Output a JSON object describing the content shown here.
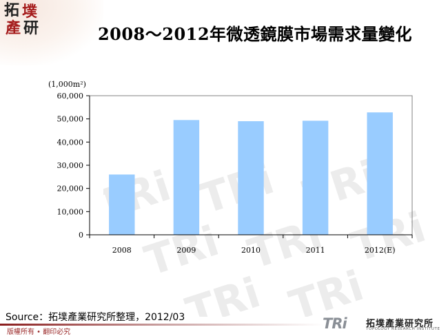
{
  "header": {
    "title": "2008～2012年微透鏡膜市場需求量變化",
    "logo_chars": [
      "拓",
      "墣",
      "產",
      "研"
    ]
  },
  "watermark_text": "TRi",
  "chart_data": {
    "type": "bar",
    "unit_label": "(1,000m²)",
    "categories": [
      "2008",
      "2009",
      "2010",
      "2011",
      "2012(E)"
    ],
    "values": [
      26000,
      49500,
      49000,
      49200,
      52800
    ],
    "ylim": [
      0,
      60000
    ],
    "yticks": [
      0,
      10000,
      20000,
      30000,
      40000,
      50000,
      60000
    ],
    "ytick_labels": [
      "0",
      "10,000",
      "20,000",
      "30,000",
      "40,000",
      "50,000",
      "60,000"
    ],
    "bar_color": "#99ccff",
    "grid": false,
    "legend": "none"
  },
  "footer": {
    "source": "Source：拓墣產業研究所整理，2012/03",
    "copyright": "版權所有 • 翻印必究",
    "brand_mark": "TRi",
    "brand_cn": "拓墣產業研究所",
    "brand_en": "TOPOLOGY RESEARCH INSTITUTE"
  },
  "colors": {
    "logo_red": "#a51c1c",
    "logo_dark": "#222222",
    "accent": "#8a1c1c"
  }
}
